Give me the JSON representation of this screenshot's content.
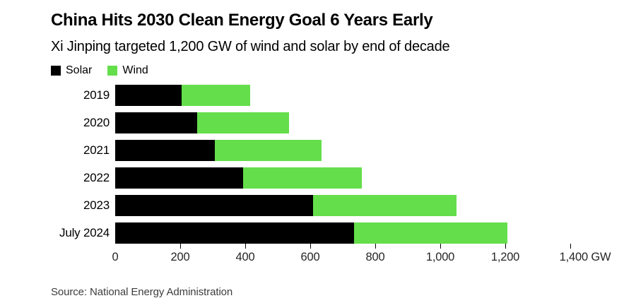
{
  "header": {
    "title": "China Hits 2030 Clean Energy Goal 6 Years Early",
    "subtitle": "Xi Jinping targeted 1,200 GW of wind and solar by end of decade"
  },
  "legend": [
    {
      "label": "Solar",
      "color": "#000000"
    },
    {
      "label": "Wind",
      "color": "#64DE4B"
    }
  ],
  "chart_data": {
    "type": "bar",
    "orientation": "horizontal",
    "stacked": true,
    "title": "China Hits 2030 Clean Energy Goal 6 Years Early",
    "subtitle": "Xi Jinping targeted 1,200 GW of wind and solar by end of decade",
    "unit": "GW",
    "categories": [
      "2019",
      "2020",
      "2021",
      "2022",
      "2023",
      "July 2024"
    ],
    "series": [
      {
        "name": "Solar",
        "color": "#000000",
        "values": [
          205,
          253,
          306,
          393,
          609,
          735
        ]
      },
      {
        "name": "Wind",
        "color": "#64DE4B",
        "values": [
          210,
          282,
          329,
          366,
          441,
          471
        ]
      }
    ],
    "totals": [
      415,
      535,
      635,
      759,
      1050,
      1206
    ],
    "xlim": [
      0,
      1400
    ],
    "x_ticks": [
      0,
      200,
      400,
      600,
      800,
      1000,
      1200,
      1400
    ],
    "x_tick_labels": [
      "0",
      "200",
      "400",
      "600",
      "800",
      "1,000",
      "1,200",
      "1,400 GW"
    ],
    "grid": false,
    "legend_position": "top-left"
  },
  "footer": {
    "source": "Source: National Energy Administration"
  }
}
